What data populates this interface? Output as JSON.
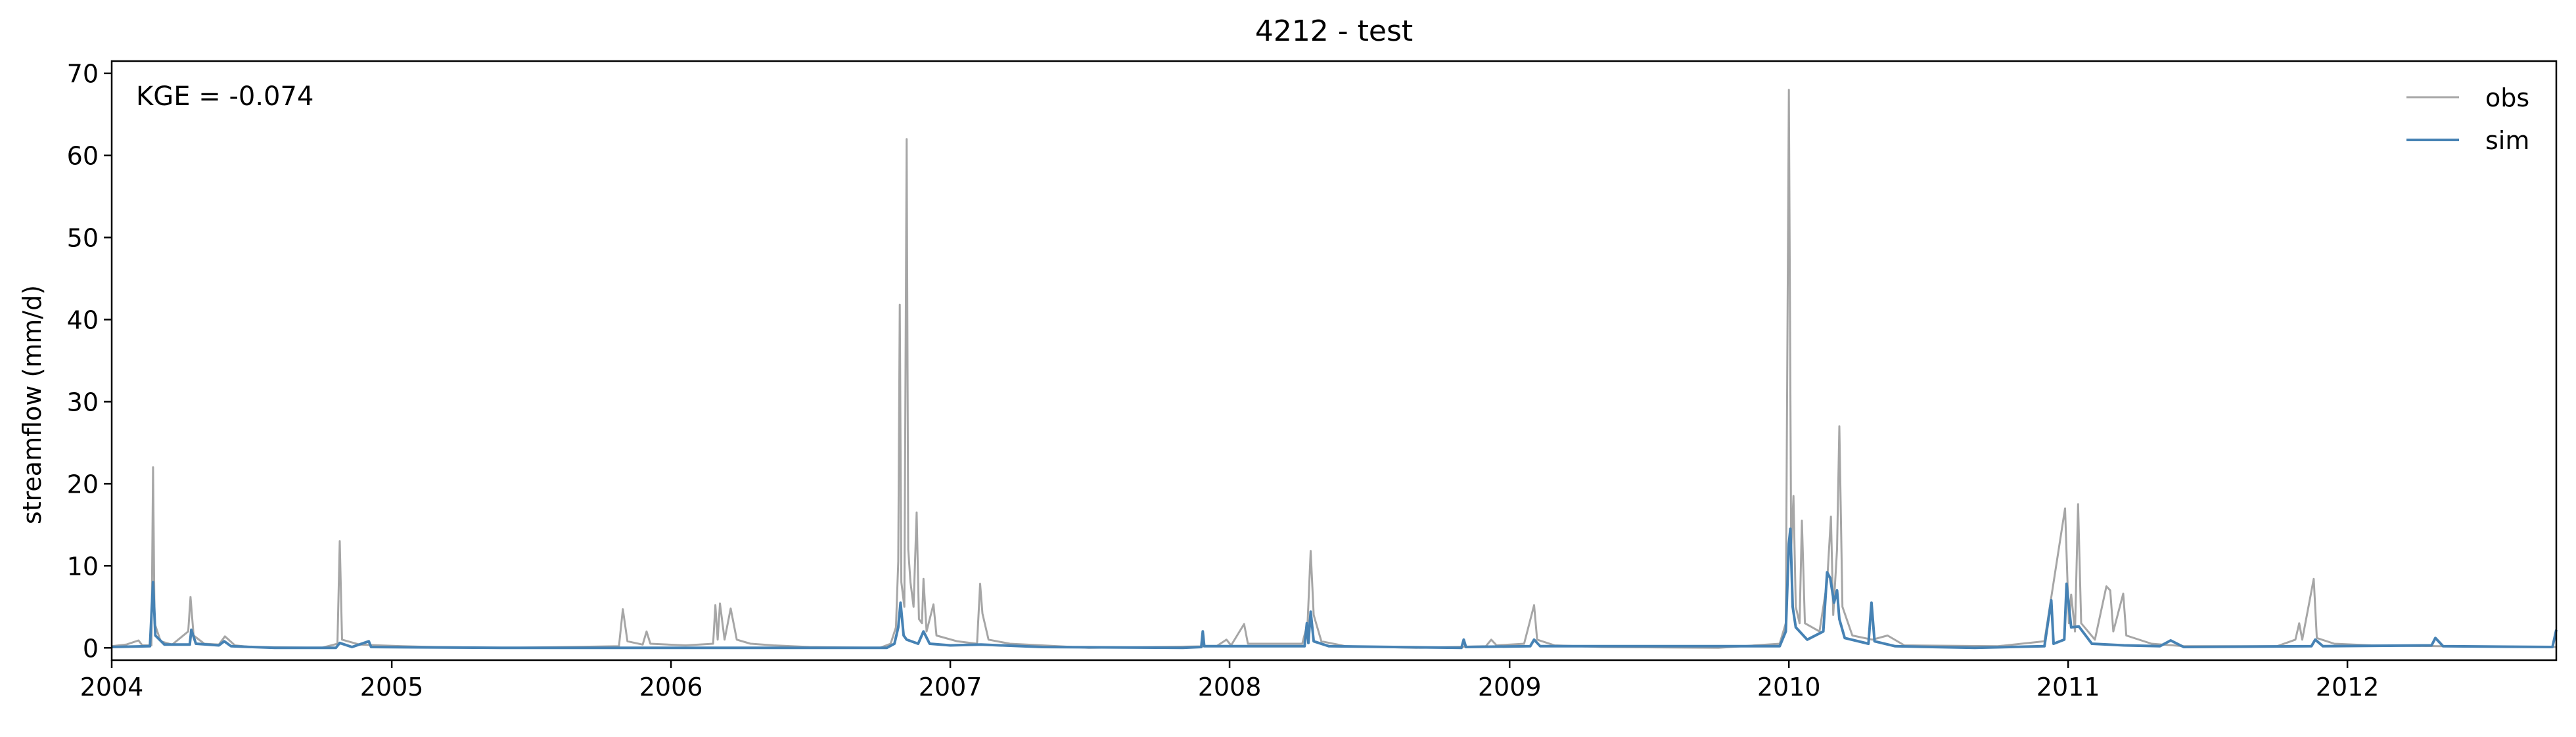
{
  "chart_data": {
    "type": "line",
    "title": "4212 - test",
    "xlabel": "",
    "ylabel": "streamflow (mm/d)",
    "annotation": "KGE = -0.074",
    "x_axis": {
      "type": "date",
      "range": [
        "2004-01-01",
        "2012-09-30"
      ],
      "tick_labels": [
        "2004",
        "2005",
        "2006",
        "2007",
        "2008",
        "2009",
        "2010",
        "2011",
        "2012"
      ]
    },
    "y_axis": {
      "range": [
        -1.5,
        71.5
      ],
      "ticks": [
        0,
        10,
        20,
        30,
        40,
        50,
        60,
        70
      ]
    },
    "grid": false,
    "legend": {
      "placement": "top-right",
      "entries": [
        "obs",
        "sim"
      ]
    },
    "series": [
      {
        "name": "obs",
        "color": "#a6a6a6",
        "points": [
          [
            "2004-01-01",
            0.2
          ],
          [
            "2004-01-20",
            0.4
          ],
          [
            "2004-02-05",
            0.9
          ],
          [
            "2004-02-10",
            0.3
          ],
          [
            "2004-02-22",
            0.3
          ],
          [
            "2004-02-24",
            22.0
          ],
          [
            "2004-02-26",
            3.0
          ],
          [
            "2004-03-05",
            0.8
          ],
          [
            "2004-03-20",
            0.4
          ],
          [
            "2004-04-10",
            2.0
          ],
          [
            "2004-04-13",
            6.2
          ],
          [
            "2004-04-17",
            1.5
          ],
          [
            "2004-05-01",
            0.5
          ],
          [
            "2004-05-20",
            0.4
          ],
          [
            "2004-05-28",
            1.4
          ],
          [
            "2004-06-10",
            0.3
          ],
          [
            "2004-07-01",
            0.1
          ],
          [
            "2004-10-01",
            0.0
          ],
          [
            "2004-10-22",
            0.5
          ],
          [
            "2004-10-25",
            13.0
          ],
          [
            "2004-10-28",
            1.0
          ],
          [
            "2004-11-20",
            0.4
          ],
          [
            "2004-12-15",
            0.3
          ],
          [
            "2005-01-15",
            0.2
          ],
          [
            "2005-03-01",
            0.1
          ],
          [
            "2005-06-01",
            0.0
          ],
          [
            "2005-10-25",
            0.2
          ],
          [
            "2005-10-30",
            4.7
          ],
          [
            "2005-11-05",
            0.8
          ],
          [
            "2005-11-25",
            0.4
          ],
          [
            "2005-11-30",
            2.0
          ],
          [
            "2005-12-05",
            0.5
          ],
          [
            "2006-01-20",
            0.3
          ],
          [
            "2006-02-25",
            0.5
          ],
          [
            "2006-02-28",
            5.2
          ],
          [
            "2006-03-03",
            1.0
          ],
          [
            "2006-03-06",
            5.4
          ],
          [
            "2006-03-12",
            1.0
          ],
          [
            "2006-03-20",
            4.8
          ],
          [
            "2006-03-28",
            1.0
          ],
          [
            "2006-04-15",
            0.5
          ],
          [
            "2006-05-15",
            0.3
          ],
          [
            "2006-07-01",
            0.1
          ],
          [
            "2006-10-01",
            0.0
          ],
          [
            "2006-10-15",
            0.5
          ],
          [
            "2006-10-22",
            2.5
          ],
          [
            "2006-10-25",
            10.5
          ],
          [
            "2006-10-27",
            41.8
          ],
          [
            "2006-10-29",
            8.0
          ],
          [
            "2006-11-02",
            5.0
          ],
          [
            "2006-11-05",
            62.0
          ],
          [
            "2006-11-07",
            12.0
          ],
          [
            "2006-11-10",
            8.0
          ],
          [
            "2006-11-14",
            5.0
          ],
          [
            "2006-11-18",
            16.5
          ],
          [
            "2006-11-21",
            3.5
          ],
          [
            "2006-11-25",
            3.0
          ],
          [
            "2006-11-27",
            8.4
          ],
          [
            "2006-12-01",
            2.0
          ],
          [
            "2006-12-10",
            5.3
          ],
          [
            "2006-12-14",
            1.5
          ],
          [
            "2007-01-10",
            0.8
          ],
          [
            "2007-02-05",
            0.5
          ],
          [
            "2007-02-09",
            7.8
          ],
          [
            "2007-02-12",
            4.2
          ],
          [
            "2007-02-20",
            1.0
          ],
          [
            "2007-03-20",
            0.5
          ],
          [
            "2007-05-01",
            0.3
          ],
          [
            "2007-07-01",
            0.0
          ],
          [
            "2007-12-15",
            0.2
          ],
          [
            "2007-12-28",
            1.0
          ],
          [
            "2008-01-03",
            0.3
          ],
          [
            "2008-01-20",
            2.9
          ],
          [
            "2008-01-25",
            0.5
          ],
          [
            "2008-04-05",
            0.5
          ],
          [
            "2008-04-12",
            3.0
          ],
          [
            "2008-04-16",
            11.8
          ],
          [
            "2008-04-20",
            4.0
          ],
          [
            "2008-04-30",
            0.8
          ],
          [
            "2008-06-01",
            0.2
          ],
          [
            "2008-09-01",
            0.0
          ],
          [
            "2008-12-01",
            0.2
          ],
          [
            "2008-12-08",
            1.0
          ],
          [
            "2008-12-15",
            0.3
          ],
          [
            "2009-01-20",
            0.5
          ],
          [
            "2009-02-02",
            5.2
          ],
          [
            "2009-02-06",
            1.0
          ],
          [
            "2009-03-01",
            0.3
          ],
          [
            "2009-05-01",
            0.1
          ],
          [
            "2009-10-01",
            0.0
          ],
          [
            "2009-12-20",
            0.5
          ],
          [
            "2009-12-28",
            3.0
          ],
          [
            "2010-01-01",
            68.0
          ],
          [
            "2010-01-04",
            12.0
          ],
          [
            "2010-01-07",
            18.5
          ],
          [
            "2010-01-10",
            5.0
          ],
          [
            "2010-01-15",
            3.0
          ],
          [
            "2010-01-18",
            15.5
          ],
          [
            "2010-01-22",
            3.0
          ],
          [
            "2010-02-10",
            2.0
          ],
          [
            "2010-02-20",
            8.0
          ],
          [
            "2010-02-25",
            16.0
          ],
          [
            "2010-02-28",
            4.0
          ],
          [
            "2010-03-05",
            12.0
          ],
          [
            "2010-03-08",
            27.0
          ],
          [
            "2010-03-12",
            5.0
          ],
          [
            "2010-03-25",
            1.5
          ],
          [
            "2010-04-20",
            1.0
          ],
          [
            "2010-05-10",
            1.5
          ],
          [
            "2010-06-01",
            0.3
          ],
          [
            "2010-10-01",
            0.2
          ],
          [
            "2010-12-01",
            0.8
          ],
          [
            "2010-12-28",
            17.0
          ],
          [
            "2011-01-02",
            3.0
          ],
          [
            "2011-01-05",
            6.5
          ],
          [
            "2011-01-10",
            2.0
          ],
          [
            "2011-01-14",
            17.5
          ],
          [
            "2011-01-18",
            3.0
          ],
          [
            "2011-02-05",
            1.0
          ],
          [
            "2011-02-20",
            7.5
          ],
          [
            "2011-02-25",
            7.0
          ],
          [
            "2011-03-01",
            2.0
          ],
          [
            "2011-03-14",
            6.6
          ],
          [
            "2011-03-18",
            1.5
          ],
          [
            "2011-04-20",
            0.5
          ],
          [
            "2011-06-01",
            0.2
          ],
          [
            "2011-10-01",
            0.2
          ],
          [
            "2011-10-25",
            1.0
          ],
          [
            "2011-10-30",
            3.0
          ],
          [
            "2011-11-03",
            1.0
          ],
          [
            "2011-11-18",
            8.4
          ],
          [
            "2011-11-22",
            1.2
          ],
          [
            "2011-12-15",
            0.5
          ],
          [
            "2012-02-01",
            0.3
          ],
          [
            "2012-05-01",
            0.2
          ],
          [
            "2012-09-30",
            0.1
          ]
        ]
      },
      {
        "name": "sim",
        "color": "#4682b4",
        "points": [
          [
            "2004-01-01",
            0.1
          ],
          [
            "2004-02-20",
            0.2
          ],
          [
            "2004-02-24",
            8.0
          ],
          [
            "2004-02-27",
            1.5
          ],
          [
            "2004-03-10",
            0.4
          ],
          [
            "2004-04-12",
            0.4
          ],
          [
            "2004-04-14",
            2.2
          ],
          [
            "2004-04-20",
            0.5
          ],
          [
            "2004-05-20",
            0.3
          ],
          [
            "2004-05-27",
            0.8
          ],
          [
            "2004-06-05",
            0.2
          ],
          [
            "2004-08-01",
            0.0
          ],
          [
            "2004-10-20",
            0.0
          ],
          [
            "2004-10-25",
            0.6
          ],
          [
            "2004-11-10",
            0.1
          ],
          [
            "2004-12-02",
            0.8
          ],
          [
            "2004-12-05",
            0.1
          ],
          [
            "2005-06-01",
            0.0
          ],
          [
            "2006-10-10",
            0.0
          ],
          [
            "2006-10-20",
            0.5
          ],
          [
            "2006-10-25",
            2.5
          ],
          [
            "2006-10-28",
            5.5
          ],
          [
            "2006-11-01",
            1.5
          ],
          [
            "2006-11-05",
            1.0
          ],
          [
            "2006-11-20",
            0.5
          ],
          [
            "2006-11-27",
            2.0
          ],
          [
            "2006-12-05",
            0.5
          ],
          [
            "2007-01-01",
            0.3
          ],
          [
            "2007-02-10",
            0.4
          ],
          [
            "2007-05-01",
            0.1
          ],
          [
            "2007-11-01",
            0.0
          ],
          [
            "2007-11-25",
            0.1
          ],
          [
            "2007-11-27",
            2.0
          ],
          [
            "2007-11-29",
            0.2
          ],
          [
            "2008-04-08",
            0.2
          ],
          [
            "2008-04-11",
            3.0
          ],
          [
            "2008-04-13",
            0.6
          ],
          [
            "2008-04-16",
            4.4
          ],
          [
            "2008-04-20",
            0.8
          ],
          [
            "2008-05-10",
            0.2
          ],
          [
            "2008-10-30",
            0.0
          ],
          [
            "2008-11-02",
            1.0
          ],
          [
            "2008-11-05",
            0.1
          ],
          [
            "2009-01-28",
            0.2
          ],
          [
            "2009-02-02",
            1.0
          ],
          [
            "2009-02-10",
            0.2
          ],
          [
            "2009-12-20",
            0.2
          ],
          [
            "2009-12-28",
            2.0
          ],
          [
            "2010-01-01",
            12.7
          ],
          [
            "2010-01-03",
            14.5
          ],
          [
            "2010-01-06",
            5.0
          ],
          [
            "2010-01-10",
            2.5
          ],
          [
            "2010-01-25",
            1.0
          ],
          [
            "2010-02-15",
            2.0
          ],
          [
            "2010-02-20",
            9.2
          ],
          [
            "2010-02-24",
            8.5
          ],
          [
            "2010-03-01",
            5.5
          ],
          [
            "2010-03-05",
            7.0
          ],
          [
            "2010-03-08",
            3.5
          ],
          [
            "2010-03-15",
            1.2
          ],
          [
            "2010-04-15",
            0.5
          ],
          [
            "2010-04-19",
            5.5
          ],
          [
            "2010-04-23",
            0.8
          ],
          [
            "2010-05-20",
            0.2
          ],
          [
            "2010-09-01",
            0.0
          ],
          [
            "2010-12-01",
            0.2
          ],
          [
            "2010-12-10",
            5.8
          ],
          [
            "2010-12-13",
            0.5
          ],
          [
            "2010-12-27",
            1.0
          ],
          [
            "2010-12-30",
            7.8
          ],
          [
            "2011-01-05",
            2.5
          ],
          [
            "2011-01-15",
            2.6
          ],
          [
            "2011-02-01",
            0.5
          ],
          [
            "2011-03-15",
            0.3
          ],
          [
            "2011-05-01",
            0.2
          ],
          [
            "2011-05-15",
            0.9
          ],
          [
            "2011-06-01",
            0.1
          ],
          [
            "2011-11-15",
            0.2
          ],
          [
            "2011-11-20",
            1.0
          ],
          [
            "2011-11-30",
            0.2
          ],
          [
            "2012-04-20",
            0.3
          ],
          [
            "2012-04-25",
            1.2
          ],
          [
            "2012-05-05",
            0.2
          ],
          [
            "2012-09-25",
            0.1
          ],
          [
            "2012-09-30",
            2.2
          ]
        ]
      }
    ]
  }
}
